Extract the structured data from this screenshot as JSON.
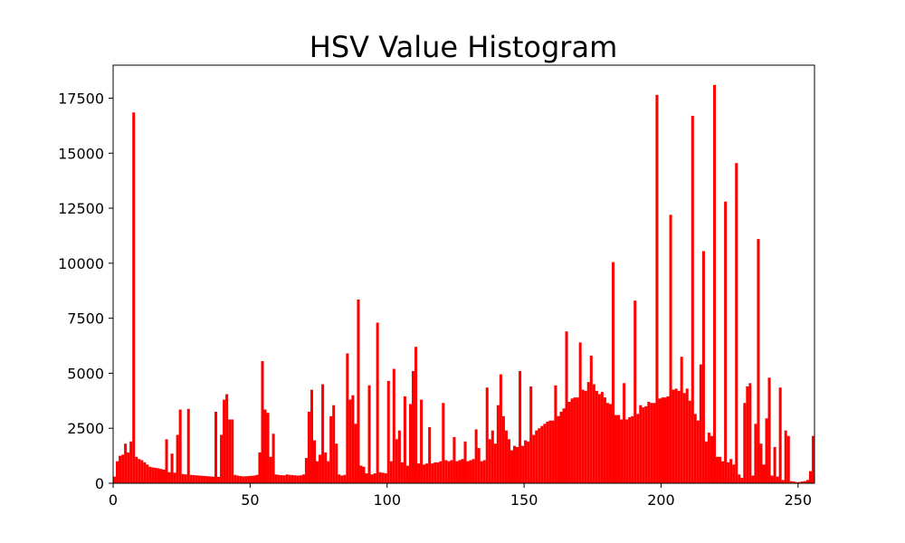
{
  "chart_data": {
    "type": "bar",
    "title": "HSV Value Histogram",
    "xlabel": "",
    "ylabel": "",
    "xlim": [
      0,
      256
    ],
    "ylim": [
      0,
      19000
    ],
    "x_ticks": [
      0,
      50,
      100,
      150,
      200,
      250
    ],
    "y_ticks": [
      0,
      2500,
      5000,
      7500,
      10000,
      12500,
      15000,
      17500
    ],
    "grid": false,
    "legend": "none",
    "bar_color": "#ff0000",
    "x": [
      0,
      1,
      2,
      3,
      4,
      5,
      6,
      7,
      8,
      9,
      10,
      11,
      12,
      13,
      14,
      15,
      16,
      17,
      18,
      19,
      20,
      21,
      22,
      23,
      24,
      25,
      26,
      27,
      28,
      29,
      30,
      31,
      32,
      33,
      34,
      35,
      36,
      37,
      38,
      39,
      40,
      41,
      42,
      43,
      44,
      45,
      46,
      47,
      48,
      49,
      50,
      51,
      52,
      53,
      54,
      55,
      56,
      57,
      58,
      59,
      60,
      61,
      62,
      63,
      64,
      65,
      66,
      67,
      68,
      69,
      70,
      71,
      72,
      73,
      74,
      75,
      76,
      77,
      78,
      79,
      80,
      81,
      82,
      83,
      84,
      85,
      86,
      87,
      88,
      89,
      90,
      91,
      92,
      93,
      94,
      95,
      96,
      97,
      98,
      99,
      100,
      101,
      102,
      103,
      104,
      105,
      106,
      107,
      108,
      109,
      110,
      111,
      112,
      113,
      114,
      115,
      116,
      117,
      118,
      119,
      120,
      121,
      122,
      123,
      124,
      125,
      126,
      127,
      128,
      129,
      130,
      131,
      132,
      133,
      134,
      135,
      136,
      137,
      138,
      139,
      140,
      141,
      142,
      143,
      144,
      145,
      146,
      147,
      148,
      149,
      150,
      151,
      152,
      153,
      154,
      155,
      156,
      157,
      158,
      159,
      160,
      161,
      162,
      163,
      164,
      165,
      166,
      167,
      168,
      169,
      170,
      171,
      172,
      173,
      174,
      175,
      176,
      177,
      178,
      179,
      180,
      181,
      182,
      183,
      184,
      185,
      186,
      187,
      188,
      189,
      190,
      191,
      192,
      193,
      194,
      195,
      196,
      197,
      198,
      199,
      200,
      201,
      202,
      203,
      204,
      205,
      206,
      207,
      208,
      209,
      210,
      211,
      212,
      213,
      214,
      215,
      216,
      217,
      218,
      219,
      220,
      221,
      222,
      223,
      224,
      225,
      226,
      227,
      228,
      229,
      230,
      231,
      232,
      233,
      234,
      235,
      236,
      237,
      238,
      239,
      240,
      241,
      242,
      243,
      244,
      245,
      246,
      247,
      248,
      249,
      250,
      251,
      252,
      253,
      254,
      255
    ],
    "values": [
      300,
      1000,
      1250,
      1300,
      1800,
      1400,
      1900,
      16850,
      1200,
      1100,
      1050,
      950,
      850,
      750,
      720,
      700,
      680,
      650,
      620,
      2000,
      500,
      1350,
      480,
      2200,
      3350,
      420,
      400,
      3380,
      380,
      370,
      360,
      350,
      340,
      330,
      320,
      310,
      300,
      3250,
      290,
      2200,
      3800,
      4050,
      2900,
      2900,
      380,
      350,
      330,
      310,
      320,
      330,
      340,
      350,
      380,
      1400,
      5550,
      3350,
      3200,
      1200,
      2250,
      400,
      380,
      370,
      360,
      400,
      380,
      370,
      360,
      350,
      360,
      400,
      1150,
      3250,
      4250,
      1950,
      1000,
      1300,
      4500,
      1400,
      1000,
      3050,
      3550,
      1800,
      400,
      350,
      380,
      5900,
      3800,
      4000,
      2700,
      8350,
      800,
      750,
      450,
      4450,
      400,
      450,
      7300,
      500,
      480,
      450,
      4650,
      1000,
      5200,
      2000,
      2400,
      950,
      3950,
      800,
      3600,
      5100,
      6200,
      900,
      3800,
      850,
      900,
      2550,
      900,
      950,
      950,
      1000,
      3650,
      1050,
      1000,
      1050,
      2100,
      1000,
      1050,
      1100,
      1900,
      1000,
      1050,
      1100,
      2450,
      1600,
      1000,
      1050,
      4350,
      2000,
      2400,
      1800,
      3550,
      4950,
      3050,
      2400,
      2000,
      1500,
      1700,
      1650,
      5100,
      1700,
      1950,
      1900,
      4400,
      2200,
      2400,
      2500,
      2600,
      2700,
      2800,
      2850,
      2850,
      4450,
      3050,
      3250,
      3400,
      6900,
      3700,
      3850,
      3900,
      3900,
      6400,
      4250,
      4200,
      4600,
      5800,
      4500,
      4200,
      4050,
      4150,
      3900,
      3650,
      3600,
      10050,
      3100,
      3100,
      2900,
      4550,
      2900,
      3000,
      3050,
      8300,
      3150,
      3550,
      3450,
      3500,
      3700,
      3650,
      3650,
      17650,
      3850,
      3900,
      3900,
      3950,
      12200,
      4250,
      4300,
      4200,
      5750,
      4100,
      4300,
      3750,
      16700,
      3150,
      2850,
      5400,
      10550,
      1900,
      2300,
      2150,
      18100,
      1200,
      1200,
      1000,
      12800,
      950,
      1100,
      850,
      14550,
      400,
      250,
      3650,
      4400,
      4550,
      350,
      2700,
      11100,
      1800,
      850,
      2950,
      4800,
      350,
      1650,
      300,
      4350,
      150,
      2400,
      2150,
      100,
      80,
      50,
      60,
      80,
      100,
      150,
      550,
      2150
    ]
  }
}
